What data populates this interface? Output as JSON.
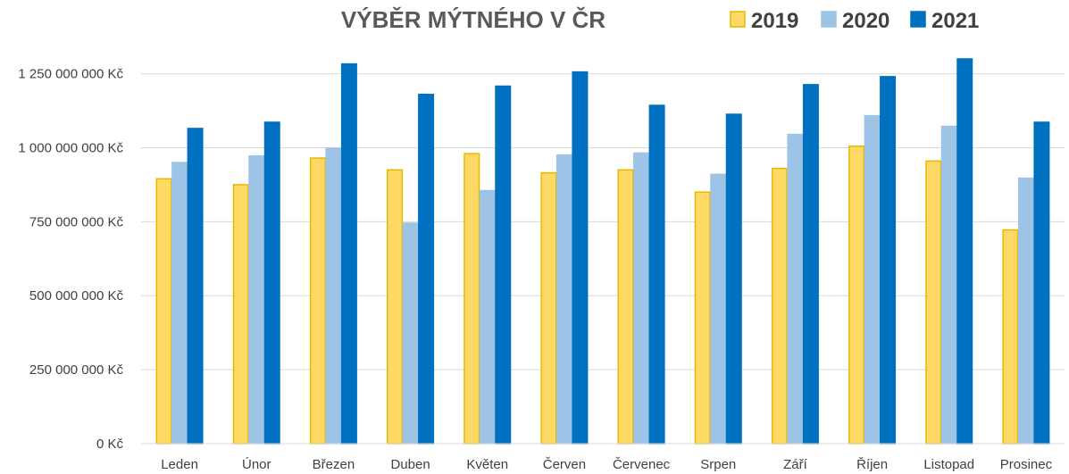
{
  "chart_data": {
    "type": "bar",
    "title": "VÝBĚR MÝTNÉHO V ČR",
    "xlabel": "",
    "ylabel": "",
    "categories": [
      "Leden",
      "Únor",
      "Březen",
      "Duben",
      "Květen",
      "Červen",
      "Červenec",
      "Srpen",
      "Září",
      "Říjen",
      "Listopad",
      "Prosinec"
    ],
    "series": [
      {
        "name": "2019",
        "color": "#FFD966",
        "border": "#E6B800",
        "values": [
          895000000,
          875000000,
          965000000,
          925000000,
          980000000,
          915000000,
          925000000,
          850000000,
          930000000,
          1005000000,
          955000000,
          722000000
        ]
      },
      {
        "name": "2020",
        "color": "#9DC3E6",
        "border": "#9DC3E6",
        "values": [
          950000000,
          972000000,
          998000000,
          745000000,
          855000000,
          975000000,
          982000000,
          910000000,
          1045000000,
          1108000000,
          1072000000,
          897000000
        ]
      },
      {
        "name": "2021",
        "color": "#0070C0",
        "border": "#0070C0",
        "values": [
          1065000000,
          1086000000,
          1283000000,
          1180000000,
          1208000000,
          1256000000,
          1143000000,
          1113000000,
          1213000000,
          1240000000,
          1300000000,
          1086000000
        ]
      }
    ],
    "ylim": [
      0,
      1300000000
    ],
    "yticks": [
      {
        "value": 0,
        "label": "0 Kč"
      },
      {
        "value": 250000000,
        "label": "250 000 000 Kč"
      },
      {
        "value": 500000000,
        "label": "500 000 000 Kč"
      },
      {
        "value": 750000000,
        "label": "750 000 000 Kč"
      },
      {
        "value": 1000000000,
        "label": "1 000 000 000 Kč"
      },
      {
        "value": 1250000000,
        "label": "1 250 000 000 Kč"
      }
    ],
    "grid": true,
    "gridColor": "#D9D9D9",
    "legend": "top-right"
  }
}
